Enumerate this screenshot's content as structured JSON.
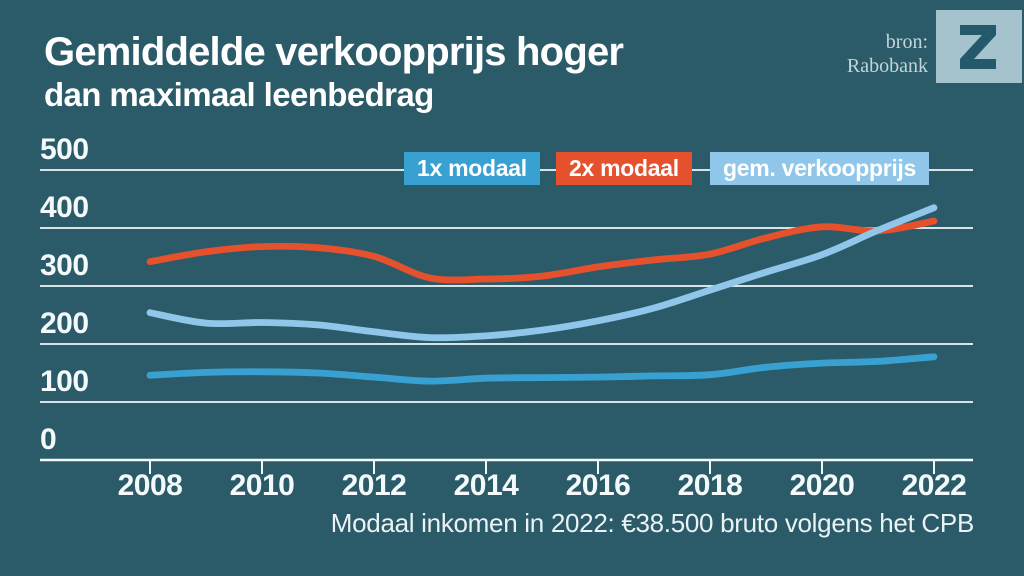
{
  "header": {
    "title_line1": "Gemiddelde verkoopprijs hoger",
    "title_line2": "dan maximaal leenbedrag",
    "source_label": "bron:",
    "source_name": "Rabobank",
    "logo_letter": "Z"
  },
  "colors": {
    "background": "#2B5B68",
    "title_text": "#FFFFFF",
    "axis_text": "#F4FAFB",
    "gridline": "#F2F8F9",
    "source_text": "#C2D5DA",
    "logo_background": "#A4C3CD",
    "logo_glyph": "#23596A",
    "series_1x_modaal": "#38A1D2",
    "series_2x_modaal": "#E5502D",
    "series_verkoopprijs": "#8FC6E9"
  },
  "legend": [
    {
      "label": "1x modaal",
      "color": "#38A1D2"
    },
    {
      "label": "2x modaal",
      "color": "#E5502D"
    },
    {
      "label": "gem. verkoopprijs",
      "color": "#8FC6E9"
    }
  ],
  "chart_data": {
    "type": "line",
    "title": "Gemiddelde verkoopprijs hoger dan maximaal leenbedrag",
    "x": [
      2008,
      2009,
      2010,
      2011,
      2012,
      2013,
      2014,
      2015,
      2016,
      2017,
      2018,
      2019,
      2020,
      2021,
      2022
    ],
    "x_ticks": [
      2008,
      2010,
      2012,
      2014,
      2016,
      2018,
      2020,
      2022
    ],
    "y_ticks": [
      0,
      100,
      200,
      300,
      400,
      500
    ],
    "ylim": [
      0,
      500
    ],
    "grid": "horizontal",
    "legend_position": "top",
    "series": [
      {
        "name": "1x modaal",
        "color": "#38A1D2",
        "values": [
          146,
          151,
          152,
          150,
          143,
          136,
          141,
          142,
          143,
          145,
          147,
          160,
          167,
          170,
          178
        ]
      },
      {
        "name": "2x modaal",
        "color": "#E5502D",
        "values": [
          342,
          359,
          368,
          366,
          351,
          314,
          312,
          317,
          333,
          345,
          355,
          383,
          402,
          395,
          412
        ]
      },
      {
        "name": "gem. verkoopprijs",
        "color": "#8FC6E9",
        "values": [
          254,
          236,
          237,
          233,
          221,
          211,
          214,
          224,
          240,
          262,
          293,
          324,
          354,
          396,
          435
        ]
      }
    ],
    "footnote": "Modaal inkomen in 2022: €38.500 bruto volgens het CPB"
  }
}
